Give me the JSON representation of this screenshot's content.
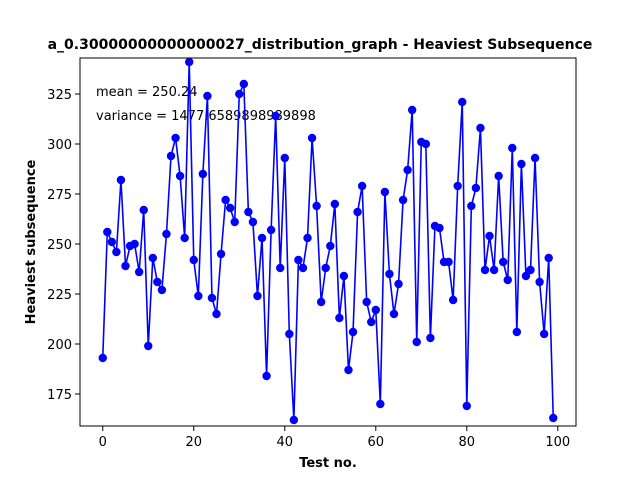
{
  "chart_data": {
    "type": "line",
    "title": "a_0.30000000000000027_distribution_graph - Heaviest Subsequence",
    "xlabel": "Test no.",
    "ylabel": "Heaviest subsequence",
    "xlim": [
      -5,
      104
    ],
    "ylim": [
      159,
      343
    ],
    "xticks": [
      0,
      20,
      40,
      60,
      80,
      100
    ],
    "yticks": [
      175,
      200,
      225,
      250,
      275,
      300,
      325
    ],
    "grid": false,
    "legend": "none",
    "annotations": [
      "mean = 250.24",
      "variance = 1477.6589898989898"
    ],
    "series": [
      {
        "color": "#0000ff",
        "marker": "circle",
        "x": [
          0,
          1,
          2,
          3,
          4,
          5,
          6,
          7,
          8,
          9,
          10,
          11,
          12,
          13,
          14,
          15,
          16,
          17,
          18,
          19,
          20,
          21,
          22,
          23,
          24,
          25,
          26,
          27,
          28,
          29,
          30,
          31,
          32,
          33,
          34,
          35,
          36,
          37,
          38,
          39,
          40,
          41,
          42,
          43,
          44,
          45,
          46,
          47,
          48,
          49,
          50,
          51,
          52,
          53,
          54,
          55,
          56,
          57,
          58,
          59,
          60,
          61,
          62,
          63,
          64,
          65,
          66,
          67,
          68,
          69,
          70,
          71,
          72,
          73,
          74,
          75,
          76,
          77,
          78,
          79,
          80,
          81,
          82,
          83,
          84,
          85,
          86,
          87,
          88,
          89,
          90,
          91,
          92,
          93,
          94,
          95,
          96,
          97,
          98,
          99
        ],
        "values": [
          193,
          256,
          251,
          246,
          282,
          239,
          249,
          250,
          236,
          267,
          199,
          243,
          231,
          227,
          255,
          294,
          303,
          284,
          253,
          341,
          242,
          224,
          285,
          324,
          223,
          215,
          245,
          272,
          268,
          261,
          325,
          330,
          266,
          261,
          224,
          253,
          184,
          257,
          314,
          238,
          293,
          205,
          162,
          242,
          238,
          253,
          303,
          269,
          221,
          238,
          249,
          270,
          213,
          234,
          187,
          206,
          266,
          279,
          221,
          211,
          217,
          170,
          276,
          235,
          215,
          230,
          272,
          287,
          317,
          201,
          301,
          300,
          203,
          259,
          258,
          241,
          241,
          222,
          279,
          321,
          169,
          269,
          278,
          308,
          237,
          254,
          237,
          284,
          241,
          232,
          298,
          206,
          290,
          234,
          237,
          293,
          231,
          205,
          243,
          163
        ]
      }
    ]
  }
}
